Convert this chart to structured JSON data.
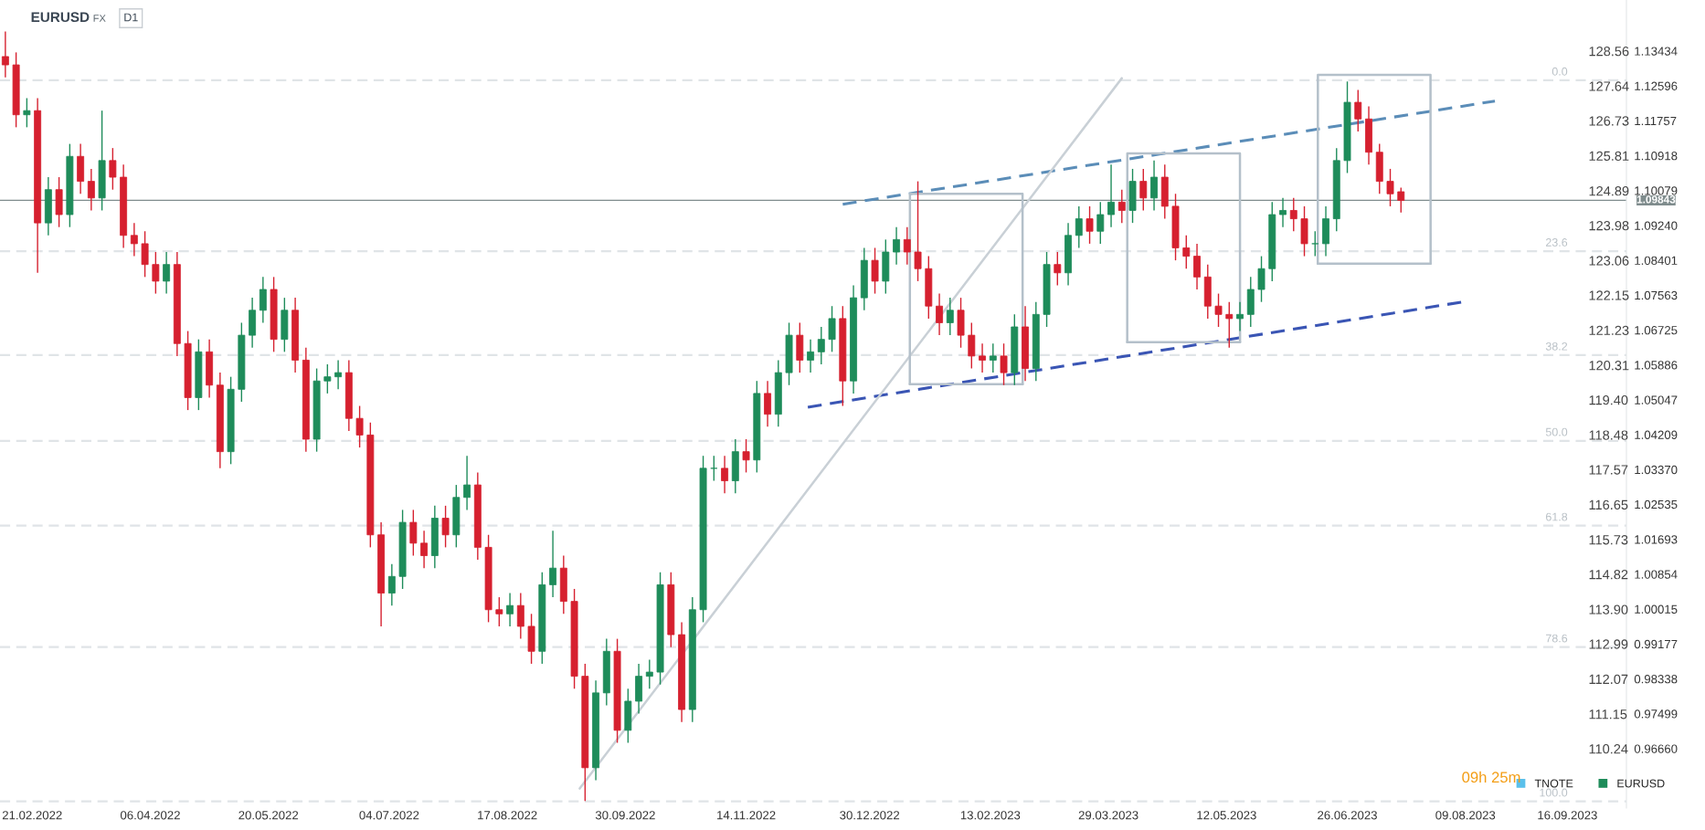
{
  "chart_data": {
    "type": "candlestick",
    "title": "EURUSD",
    "subtitle": "FX",
    "annotations": [
      "D1",
      "09h 25m",
      {
        "text": "0.0",
        "x": "2023-09-18",
        "y": 1.1273
      },
      {
        "text": "23.6",
        "x": "2023-09-18",
        "y": 1.0862
      },
      {
        "text": "38.2",
        "x": "2023-09-18",
        "y": 1.0612
      },
      {
        "text": "50.0",
        "x": "2023-09-18",
        "y": 1.0406
      },
      {
        "text": "61.8",
        "x": "2023-09-18",
        "y": 1.0202
      },
      {
        "text": "78.6",
        "x": "2023-09-18",
        "y": 0.991
      },
      {
        "text": "100.0",
        "x": "2023-09-18",
        "y": 0.9539
      }
    ],
    "x": [
      "2022-02-11",
      "2022-02-15",
      "2022-02-19",
      "2022-02-23",
      "2022-02-27",
      "2022-03-03",
      "2022-03-07",
      "2022-03-11",
      "2022-03-15",
      "2022-03-19",
      "2022-03-23",
      "2022-03-27",
      "2022-03-31",
      "2022-04-04",
      "2022-04-08",
      "2022-04-12",
      "2022-04-16",
      "2022-04-20",
      "2022-04-24",
      "2022-04-28",
      "2022-05-02",
      "2022-05-06",
      "2022-05-10",
      "2022-05-14",
      "2022-05-18",
      "2022-05-22",
      "2022-05-26",
      "2022-05-30",
      "2022-06-03",
      "2022-06-07",
      "2022-06-11",
      "2022-06-15",
      "2022-06-19",
      "2022-06-23",
      "2022-06-27",
      "2022-07-01",
      "2022-07-05",
      "2022-07-09",
      "2022-07-13",
      "2022-07-17",
      "2022-07-21",
      "2022-07-25",
      "2022-07-29",
      "2022-08-02",
      "2022-08-06",
      "2022-08-10",
      "2022-08-14",
      "2022-08-18",
      "2022-08-22",
      "2022-08-26",
      "2022-08-30",
      "2022-09-03",
      "2022-09-07",
      "2022-09-11",
      "2022-09-15",
      "2022-09-19",
      "2022-09-23",
      "2022-09-27",
      "2022-10-01",
      "2022-10-05",
      "2022-10-09",
      "2022-10-13",
      "2022-10-17",
      "2022-10-21",
      "2022-10-25",
      "2022-10-29",
      "2022-11-02",
      "2022-11-06",
      "2022-11-10",
      "2022-11-14",
      "2022-11-18",
      "2022-11-22",
      "2022-11-26",
      "2022-11-30",
      "2022-12-04",
      "2022-12-08",
      "2022-12-12",
      "2022-12-16",
      "2022-12-20",
      "2022-12-24",
      "2022-12-28",
      "2023-01-01",
      "2023-01-05",
      "2023-01-09",
      "2023-01-13",
      "2023-01-17",
      "2023-01-21",
      "2023-01-25",
      "2023-01-29",
      "2023-02-02",
      "2023-02-06",
      "2023-02-10",
      "2023-02-14",
      "2023-02-18",
      "2023-02-22",
      "2023-02-26",
      "2023-03-02",
      "2023-03-06",
      "2023-03-10",
      "2023-03-14",
      "2023-03-18",
      "2023-03-22",
      "2023-03-26",
      "2023-03-30",
      "2023-04-03",
      "2023-04-07",
      "2023-04-11",
      "2023-04-15",
      "2023-04-19",
      "2023-04-23",
      "2023-04-27",
      "2023-05-01",
      "2023-05-05",
      "2023-05-09",
      "2023-05-13",
      "2023-05-17",
      "2023-05-21",
      "2023-05-25",
      "2023-05-29",
      "2023-06-02",
      "2023-06-06",
      "2023-06-10",
      "2023-06-14",
      "2023-06-18",
      "2023-06-22",
      "2023-06-26",
      "2023-06-30",
      "2023-07-04",
      "2023-07-08",
      "2023-07-12",
      "2023-07-16"
    ],
    "series": [
      {
        "name": "EURUSD",
        "type": "candlestick",
        "color": "#1e8c5a",
        "colors": [
          "#d6202f",
          "#d6202f",
          "#1e8c5a",
          "#d6202f",
          "#1e8c5a",
          "#d6202f",
          "#1e8c5a",
          "#d6202f",
          "#d6202f",
          "#1e8c5a",
          "#d6202f",
          "#d6202f",
          "#d6202f",
          "#d6202f",
          "#d6202f",
          "#1e8c5a",
          "#d6202f",
          "#d6202f",
          "#1e8c5a",
          "#d6202f",
          "#d6202f",
          "#1e8c5a",
          "#1e8c5a",
          "#1e8c5a",
          "#1e8c5a",
          "#d6202f",
          "#1e8c5a",
          "#d6202f",
          "#d6202f",
          "#1e8c5a",
          "#1e8c5a",
          "#1e8c5a",
          "#d6202f",
          "#d6202f",
          "#d6202f",
          "#d6202f",
          "#1e8c5a",
          "#1e8c5a",
          "#d6202f",
          "#d6202f",
          "#1e8c5a",
          "#d6202f",
          "#1e8c5a",
          "#1e8c5a",
          "#d6202f",
          "#d6202f",
          "#d6202f",
          "#1e8c5a",
          "#d6202f",
          "#d6202f",
          "#1e8c5a",
          "#1e8c5a",
          "#d6202f",
          "#d6202f",
          "#d6202f",
          "#1e8c5a",
          "#1e8c5a",
          "#d6202f",
          "#1e8c5a",
          "#1e8c5a",
          "#1e8c5a",
          "#1e8c5a",
          "#d6202f",
          "#d6202f",
          "#1e8c5a",
          "#1e8c5a",
          "#1e8c5a",
          "#d6202f",
          "#1e8c5a",
          "#d6202f",
          "#1e8c5a",
          "#d6202f",
          "#1e8c5a",
          "#1e8c5a",
          "#d6202f",
          "#1e8c5a",
          "#1e8c5a",
          "#1e8c5a",
          "#d6202f",
          "#1e8c5a",
          "#1e8c5a",
          "#d6202f",
          "#1e8c5a",
          "#1e8c5a",
          "#d6202f",
          "#d6202f",
          "#d6202f",
          "#d6202f",
          "#1e8c5a",
          "#d6202f",
          "#d6202f",
          "#d6202f",
          "#1e8c5a",
          "#d6202f",
          "#1e8c5a",
          "#d6202f",
          "#1e8c5a",
          "#1e8c5a",
          "#d6202f",
          "#1e8c5a",
          "#1e8c5a",
          "#d6202f",
          "#1e8c5a",
          "#1e8c5a",
          "#d6202f",
          "#1e8c5a",
          "#d6202f",
          "#1e8c5a",
          "#d6202f",
          "#d6202f",
          "#d6202f",
          "#d6202f",
          "#d6202f",
          "#d6202f",
          "#d6202f",
          "#1e8c5a",
          "#1e8c5a",
          "#1e8c5a",
          "#1e8c5a",
          "#1e8c5a",
          "#d6202f",
          "#d6202f",
          "#1e8c5a",
          "#1e8c5a",
          "#1e8c5a",
          "#1e8c5a",
          "#d6202f",
          "#d6202f",
          "#d6202f",
          "#d6202f",
          "#d6202f"
        ],
        "ohlc": [
          [
            1.133,
            1.139,
            1.128,
            1.131
          ],
          [
            1.131,
            1.134,
            1.116,
            1.119
          ],
          [
            1.119,
            1.123,
            1.116,
            1.12
          ],
          [
            1.12,
            1.123,
            1.081,
            1.093
          ],
          [
            1.093,
            1.104,
            1.09,
            1.101
          ],
          [
            1.101,
            1.104,
            1.092,
            1.095
          ],
          [
            1.095,
            1.112,
            1.092,
            1.109
          ],
          [
            1.109,
            1.112,
            1.1,
            1.103
          ],
          [
            1.103,
            1.106,
            1.096,
            1.099
          ],
          [
            1.099,
            1.12,
            1.096,
            1.108
          ],
          [
            1.108,
            1.111,
            1.101,
            1.104
          ],
          [
            1.104,
            1.107,
            1.087,
            1.09
          ],
          [
            1.09,
            1.093,
            1.085,
            1.088
          ],
          [
            1.088,
            1.091,
            1.08,
            1.083
          ],
          [
            1.083,
            1.086,
            1.076,
            1.079
          ],
          [
            1.079,
            1.086,
            1.076,
            1.083
          ],
          [
            1.083,
            1.086,
            1.061,
            1.064
          ],
          [
            1.064,
            1.067,
            1.048,
            1.051
          ],
          [
            1.051,
            1.065,
            1.048,
            1.062
          ],
          [
            1.062,
            1.065,
            1.051,
            1.054
          ],
          [
            1.054,
            1.057,
            1.034,
            1.038
          ],
          [
            1.038,
            1.056,
            1.035,
            1.053
          ],
          [
            1.053,
            1.069,
            1.05,
            1.066
          ],
          [
            1.066,
            1.075,
            1.063,
            1.072
          ],
          [
            1.072,
            1.08,
            1.069,
            1.077
          ],
          [
            1.077,
            1.08,
            1.062,
            1.065
          ],
          [
            1.065,
            1.075,
            1.062,
            1.072
          ],
          [
            1.072,
            1.075,
            1.057,
            1.06
          ],
          [
            1.06,
            1.063,
            1.038,
            1.041
          ],
          [
            1.041,
            1.058,
            1.038,
            1.055
          ],
          [
            1.055,
            1.059,
            1.052,
            1.056
          ],
          [
            1.056,
            1.06,
            1.053,
            1.057
          ],
          [
            1.057,
            1.06,
            1.043,
            1.046
          ],
          [
            1.046,
            1.049,
            1.039,
            1.042
          ],
          [
            1.042,
            1.045,
            1.015,
            1.018
          ],
          [
            1.018,
            1.021,
            0.996,
            1.004
          ],
          [
            1.004,
            1.011,
            1.001,
            1.008
          ],
          [
            1.008,
            1.024,
            1.005,
            1.021
          ],
          [
            1.021,
            1.024,
            1.013,
            1.016
          ],
          [
            1.016,
            1.019,
            1.01,
            1.013
          ],
          [
            1.013,
            1.025,
            1.01,
            1.022
          ],
          [
            1.022,
            1.025,
            1.015,
            1.018
          ],
          [
            1.018,
            1.03,
            1.015,
            1.027
          ],
          [
            1.027,
            1.037,
            1.024,
            1.03
          ],
          [
            1.03,
            1.033,
            1.012,
            1.015
          ],
          [
            1.015,
            1.018,
            0.997,
            1.0
          ],
          [
            1.0,
            1.003,
            0.996,
            0.999
          ],
          [
            0.999,
            1.004,
            0.996,
            1.001
          ],
          [
            1.001,
            1.004,
            0.993,
            0.996
          ],
          [
            0.996,
            0.999,
            0.987,
            0.99
          ],
          [
            0.99,
            1.009,
            0.987,
            1.006
          ],
          [
            1.006,
            1.019,
            1.003,
            1.01
          ],
          [
            1.01,
            1.013,
            0.999,
            1.002
          ],
          [
            1.002,
            1.005,
            0.981,
            0.984
          ],
          [
            0.984,
            0.987,
            0.954,
            0.962
          ],
          [
            0.962,
            0.983,
            0.959,
            0.98
          ],
          [
            0.98,
            0.993,
            0.977,
            0.99
          ],
          [
            0.99,
            0.993,
            0.968,
            0.971
          ],
          [
            0.971,
            0.981,
            0.968,
            0.978
          ],
          [
            0.978,
            0.987,
            0.975,
            0.984
          ],
          [
            0.984,
            0.988,
            0.981,
            0.985
          ],
          [
            0.985,
            1.009,
            0.982,
            1.006
          ],
          [
            1.006,
            1.009,
            0.991,
            0.994
          ],
          [
            0.994,
            0.997,
            0.973,
            0.976
          ],
          [
            0.976,
            1.003,
            0.973,
            1.0
          ],
          [
            1.0,
            1.037,
            0.997,
            1.034
          ],
          [
            1.034,
            1.037,
            1.031,
            1.034
          ],
          [
            1.034,
            1.037,
            1.028,
            1.031
          ],
          [
            1.031,
            1.041,
            1.028,
            1.038
          ],
          [
            1.038,
            1.041,
            1.033,
            1.036
          ],
          [
            1.036,
            1.055,
            1.033,
            1.052
          ],
          [
            1.052,
            1.055,
            1.044,
            1.047
          ],
          [
            1.047,
            1.06,
            1.044,
            1.057
          ],
          [
            1.057,
            1.069,
            1.054,
            1.066
          ],
          [
            1.066,
            1.069,
            1.057,
            1.06
          ],
          [
            1.06,
            1.065,
            1.057,
            1.062
          ],
          [
            1.062,
            1.068,
            1.059,
            1.065
          ],
          [
            1.065,
            1.073,
            1.062,
            1.07
          ],
          [
            1.07,
            1.073,
            1.049,
            1.055
          ],
          [
            1.055,
            1.078,
            1.052,
            1.075
          ],
          [
            1.075,
            1.087,
            1.072,
            1.084
          ],
          [
            1.084,
            1.087,
            1.076,
            1.079
          ],
          [
            1.079,
            1.089,
            1.076,
            1.086
          ],
          [
            1.086,
            1.092,
            1.083,
            1.089
          ],
          [
            1.089,
            1.092,
            1.083,
            1.086
          ],
          [
            1.086,
            1.103,
            1.079,
            1.082
          ],
          [
            1.082,
            1.085,
            1.07,
            1.073
          ],
          [
            1.073,
            1.076,
            1.066,
            1.069
          ],
          [
            1.069,
            1.075,
            1.066,
            1.072
          ],
          [
            1.072,
            1.075,
            1.063,
            1.066
          ],
          [
            1.066,
            1.069,
            1.058,
            1.061
          ],
          [
            1.061,
            1.064,
            1.057,
            1.06
          ],
          [
            1.06,
            1.064,
            1.057,
            1.061
          ],
          [
            1.061,
            1.064,
            1.054,
            1.057
          ],
          [
            1.057,
            1.071,
            1.054,
            1.068
          ],
          [
            1.068,
            1.073,
            1.055,
            1.058
          ],
          [
            1.058,
            1.074,
            1.055,
            1.071
          ],
          [
            1.071,
            1.086,
            1.068,
            1.083
          ],
          [
            1.083,
            1.086,
            1.078,
            1.081
          ],
          [
            1.081,
            1.093,
            1.078,
            1.09
          ],
          [
            1.09,
            1.097,
            1.087,
            1.094
          ],
          [
            1.094,
            1.097,
            1.088,
            1.091
          ],
          [
            1.091,
            1.098,
            1.088,
            1.095
          ],
          [
            1.095,
            1.107,
            1.092,
            1.098
          ],
          [
            1.098,
            1.101,
            1.093,
            1.096
          ],
          [
            1.096,
            1.106,
            1.093,
            1.103
          ],
          [
            1.103,
            1.106,
            1.096,
            1.099
          ],
          [
            1.099,
            1.108,
            1.096,
            1.104
          ],
          [
            1.104,
            1.107,
            1.094,
            1.097
          ],
          [
            1.097,
            1.1,
            1.084,
            1.087
          ],
          [
            1.087,
            1.09,
            1.082,
            1.085
          ],
          [
            1.085,
            1.088,
            1.077,
            1.08
          ],
          [
            1.08,
            1.083,
            1.07,
            1.073
          ],
          [
            1.073,
            1.076,
            1.068,
            1.071
          ],
          [
            1.071,
            1.074,
            1.063,
            1.07
          ],
          [
            1.07,
            1.074,
            1.067,
            1.071
          ],
          [
            1.071,
            1.08,
            1.068,
            1.077
          ],
          [
            1.077,
            1.085,
            1.074,
            1.082
          ],
          [
            1.082,
            1.098,
            1.079,
            1.095
          ],
          [
            1.095,
            1.099,
            1.092,
            1.096
          ],
          [
            1.096,
            1.099,
            1.091,
            1.094
          ],
          [
            1.094,
            1.097,
            1.085,
            1.088
          ],
          [
            1.088,
            1.091,
            1.085,
            1.088
          ],
          [
            1.088,
            1.097,
            1.085,
            1.094
          ],
          [
            1.094,
            1.111,
            1.091,
            1.108
          ],
          [
            1.108,
            1.127,
            1.105,
            1.122
          ],
          [
            1.122,
            1.125,
            1.115,
            1.118
          ],
          [
            1.118,
            1.121,
            1.107,
            1.11
          ],
          [
            1.11,
            1.112,
            1.1,
            1.103
          ],
          [
            1.103,
            1.106,
            1.097,
            1.1
          ],
          [
            1.1005,
            1.1015,
            1.0955,
            1.0984
          ]
        ]
      },
      {
        "name": "TNOTE",
        "type": "line",
        "axis": "y2",
        "color": "#5bc0eb",
        "values": [
          null,
          null,
          null,
          null,
          null,
          null,
          null,
          null,
          null,
          null,
          null,
          null,
          null,
          null,
          null,
          null,
          null,
          null,
          null,
          null,
          null,
          null,
          null,
          null,
          null,
          null,
          null,
          null,
          null,
          null,
          null,
          null,
          null,
          null,
          null,
          null,
          null,
          null,
          null,
          null,
          null,
          null,
          null,
          null,
          null,
          null,
          null,
          null,
          null,
          null,
          null,
          null,
          null,
          null,
          null,
          null,
          null,
          null,
          null,
          null,
          null,
          null,
          null,
          null,
          null,
          null,
          null,
          null,
          null,
          null,
          null,
          null,
          null,
          null,
          null,
          null,
          null,
          null,
          null,
          null,
          null,
          null,
          null,
          null,
          null,
          null,
          null,
          null,
          null,
          null,
          null,
          null,
          null,
          null,
          null,
          null,
          null,
          null,
          null,
          null,
          null,
          null,
          null,
          null,
          null,
          null,
          null,
          null,
          null,
          null,
          null,
          null,
          null,
          null,
          null,
          null,
          null,
          null,
          null,
          null,
          null,
          null,
          null,
          null,
          null,
          null,
          null,
          null,
          null,
          null,
          null
        ]
      },
      {
        "type": "line",
        "color": "#5b8db8",
        "line_style": "dashed",
        "x": [
          "2022-12-20",
          "2023-08-20"
        ],
        "values": [
          1.0975,
          1.1223
        ]
      },
      {
        "type": "line",
        "color": "#3a55b4",
        "line_style": "dashed",
        "x": [
          "2022-12-07",
          "2023-08-08"
        ],
        "values": [
          1.0487,
          1.074
        ]
      },
      {
        "type": "line",
        "color": "#c9d0d6",
        "line_style": "solid",
        "x": [
          "2022-09-13",
          "2023-04-03"
        ],
        "values": [
          0.957,
          1.1278
        ]
      },
      {
        "type": "line",
        "color": "#b4c0ca",
        "line_style": "solid",
        "x": [
          "2023-01-14T00:00",
          "2023-01-14T01:00",
          "2023-02-25T00:00",
          "2023-02-25T01:00"
        ],
        "values": [
          1.0542,
          1.1,
          1.1,
          1.0542
        ]
      },
      {
        "type": "line",
        "color": "#b4c0ca",
        "line_style": "solid",
        "x": [
          "2023-01-14T00:00",
          "2023-02-25T01:00"
        ],
        "values": [
          1.0542,
          1.0542
        ]
      },
      {
        "type": "line",
        "color": "#b4c0ca",
        "line_style": "solid",
        "x": [
          "2023-04-05T00:00",
          "2023-04-05T01:00",
          "2023-05-17T00:00",
          "2023-05-17T01:00"
        ],
        "values": [
          1.0643,
          1.1097,
          1.1097,
          1.0643
        ]
      },
      {
        "type": "line",
        "color": "#b4c0ca",
        "line_style": "solid",
        "x": [
          "2023-04-05T00:00",
          "2023-05-17T01:00"
        ],
        "values": [
          1.0643,
          1.0643
        ]
      },
      {
        "type": "line",
        "color": "#b4c0ca",
        "line_style": "solid",
        "x": [
          "2023-06-15T00:00",
          "2023-06-15T01:00",
          "2023-07-27T00:00",
          "2023-07-27T01:00"
        ],
        "values": [
          1.0832,
          1.1286,
          1.1286,
          1.0832
        ]
      },
      {
        "type": "line",
        "color": "#b4c0ca",
        "line_style": "solid",
        "x": [
          "2023-06-15T00:00",
          "2023-07-27T01:00"
        ],
        "values": [
          1.0832,
          1.0832
        ]
      }
    ],
    "ref_lines": [
      {
        "axis": "y",
        "value": 1.1273,
        "color": "#e0e4e7",
        "line_style": "dashed"
      },
      {
        "axis": "y",
        "value": 1.0862,
        "color": "#e0e4e7",
        "line_style": "dashed"
      },
      {
        "axis": "y",
        "value": 1.0612,
        "color": "#e0e4e7",
        "line_style": "dashed"
      },
      {
        "axis": "y",
        "value": 1.0406,
        "color": "#e0e4e7",
        "line_style": "dashed"
      },
      {
        "axis": "y",
        "value": 1.0202,
        "color": "#e0e4e7",
        "line_style": "dashed"
      },
      {
        "axis": "y",
        "value": 0.991,
        "color": "#e0e4e7",
        "line_style": "dashed"
      },
      {
        "axis": "y",
        "value": 0.9539,
        "color": "#e0e4e7",
        "line_style": "dashed"
      },
      {
        "axis": "y",
        "value": 1.09843,
        "label": "1.09843",
        "color": "#7f8c8d",
        "line_style": "solid"
      }
    ],
    "xlim": [
      "2022-02-09",
      "2023-10-08"
    ],
    "xticks": [
      {
        "value": "2022-02-21",
        "label": "21.02.2022"
      },
      {
        "value": "2022-04-06",
        "label": "06.04.2022"
      },
      {
        "value": "2022-05-20",
        "label": "20.05.2022"
      },
      {
        "value": "2022-07-04",
        "label": "04.07.2022"
      },
      {
        "value": "2022-08-17",
        "label": "17.08.2022"
      },
      {
        "value": "2022-09-30",
        "label": "30.09.2022"
      },
      {
        "value": "2022-11-14",
        "label": "14.11.2022"
      },
      {
        "value": "2022-12-30",
        "label": "30.12.2022"
      },
      {
        "value": "2023-02-13",
        "label": "13.02.2023"
      },
      {
        "value": "2023-03-29",
        "label": "29.03.2023"
      },
      {
        "value": "2023-05-12",
        "label": "12.05.2023"
      },
      {
        "value": "2023-06-26",
        "label": "26.06.2023"
      },
      {
        "value": "2023-08-09",
        "label": "09.08.2023"
      },
      {
        "value": "2023-09-16",
        "label": "16.09.2023"
      }
    ],
    "ylim": [
      0.9523,
      1.1466
    ],
    "yticks": [
      1.13434,
      1.12596,
      1.11757,
      1.10918,
      1.10079,
      {
        "value": 1.0924,
        "label": "1.09240"
      },
      1.08401,
      1.07563,
      1.06725,
      1.05886,
      1.05047,
      1.04209,
      {
        "value": 1.0337,
        "label": "1.03370"
      },
      1.02535,
      1.01693,
      1.00854,
      1.00015,
      0.99177,
      0.98338,
      0.97499,
      {
        "value": 0.9666,
        "label": "0.96660"
      }
    ],
    "y2lim": [
      108.68,
      129.9
    ],
    "y2ticks": [
      128.56,
      127.64,
      126.73,
      125.81,
      124.89,
      123.98,
      123.06,
      122.15,
      121.23,
      120.31,
      {
        "value": 119.4,
        "label": "119.40"
      },
      118.48,
      117.57,
      116.65,
      115.73,
      114.82,
      {
        "value": 113.9,
        "label": "113.90"
      },
      112.99,
      112.07,
      111.15,
      110.24
    ],
    "legend": "bottom right",
    "marker": "none"
  }
}
